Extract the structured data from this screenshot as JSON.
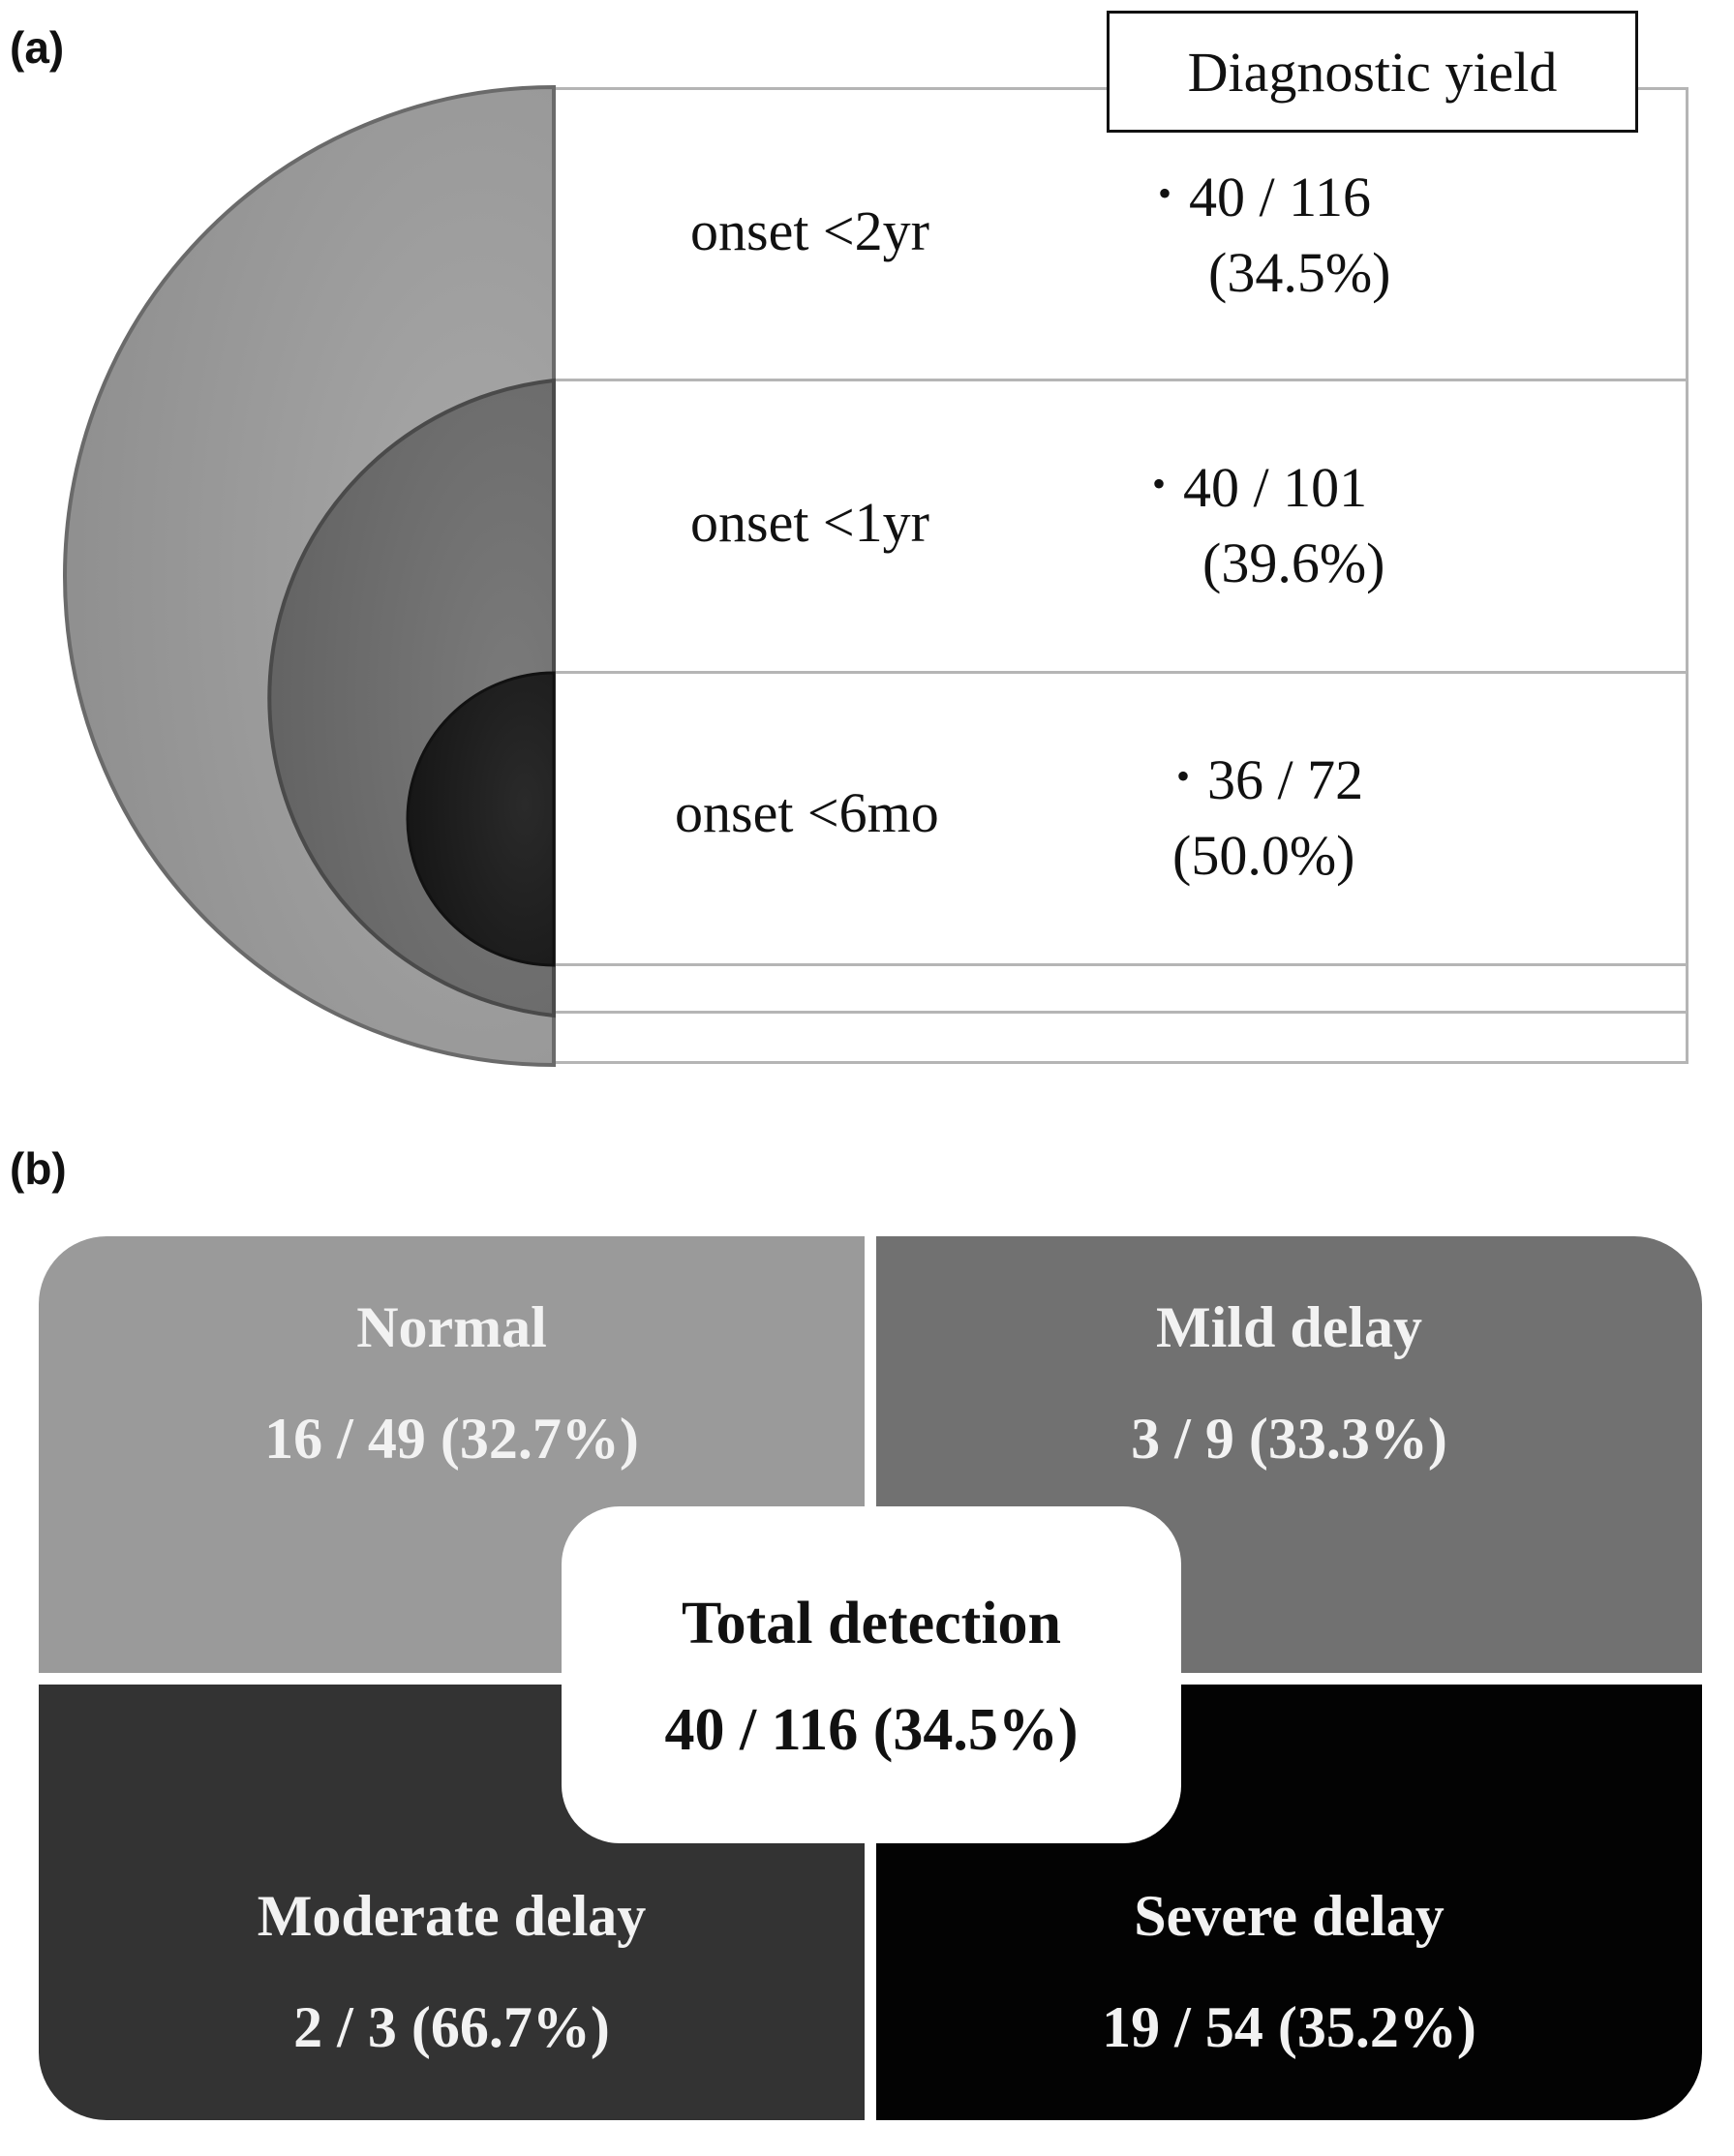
{
  "panel_a": {
    "label": "(a)",
    "header": "Diagnostic yield",
    "rows": [
      {
        "onset": "onset <2yr",
        "fraction": "40 / 116",
        "percent": "(34.5%)"
      },
      {
        "onset": "onset <1yr",
        "fraction": "40 / 101",
        "percent": "(39.6%)"
      },
      {
        "onset": "onset <6mo",
        "fraction": "36 / 72",
        "percent": "(50.0%)"
      }
    ],
    "colors": {
      "outer": "#9b9b9b",
      "middle": "#6e6e6e",
      "inner": "#1e1e1e"
    }
  },
  "panel_b": {
    "label": "(b)",
    "quadrants": [
      {
        "title": "Normal",
        "value": "16 / 49 (32.7%)",
        "color": "#9a9a9a"
      },
      {
        "title": "Mild delay",
        "value": "3 / 9 (33.3%)",
        "color": "#717171"
      },
      {
        "title": "Moderate delay",
        "value": "2 / 3 (66.7%)",
        "color": "#333333"
      },
      {
        "title": "Severe delay",
        "value": "19 / 54 (35.2%)",
        "color": "#030303"
      }
    ],
    "center": {
      "title": "Total detection",
      "value": "40 / 116 (34.5%)"
    }
  }
}
